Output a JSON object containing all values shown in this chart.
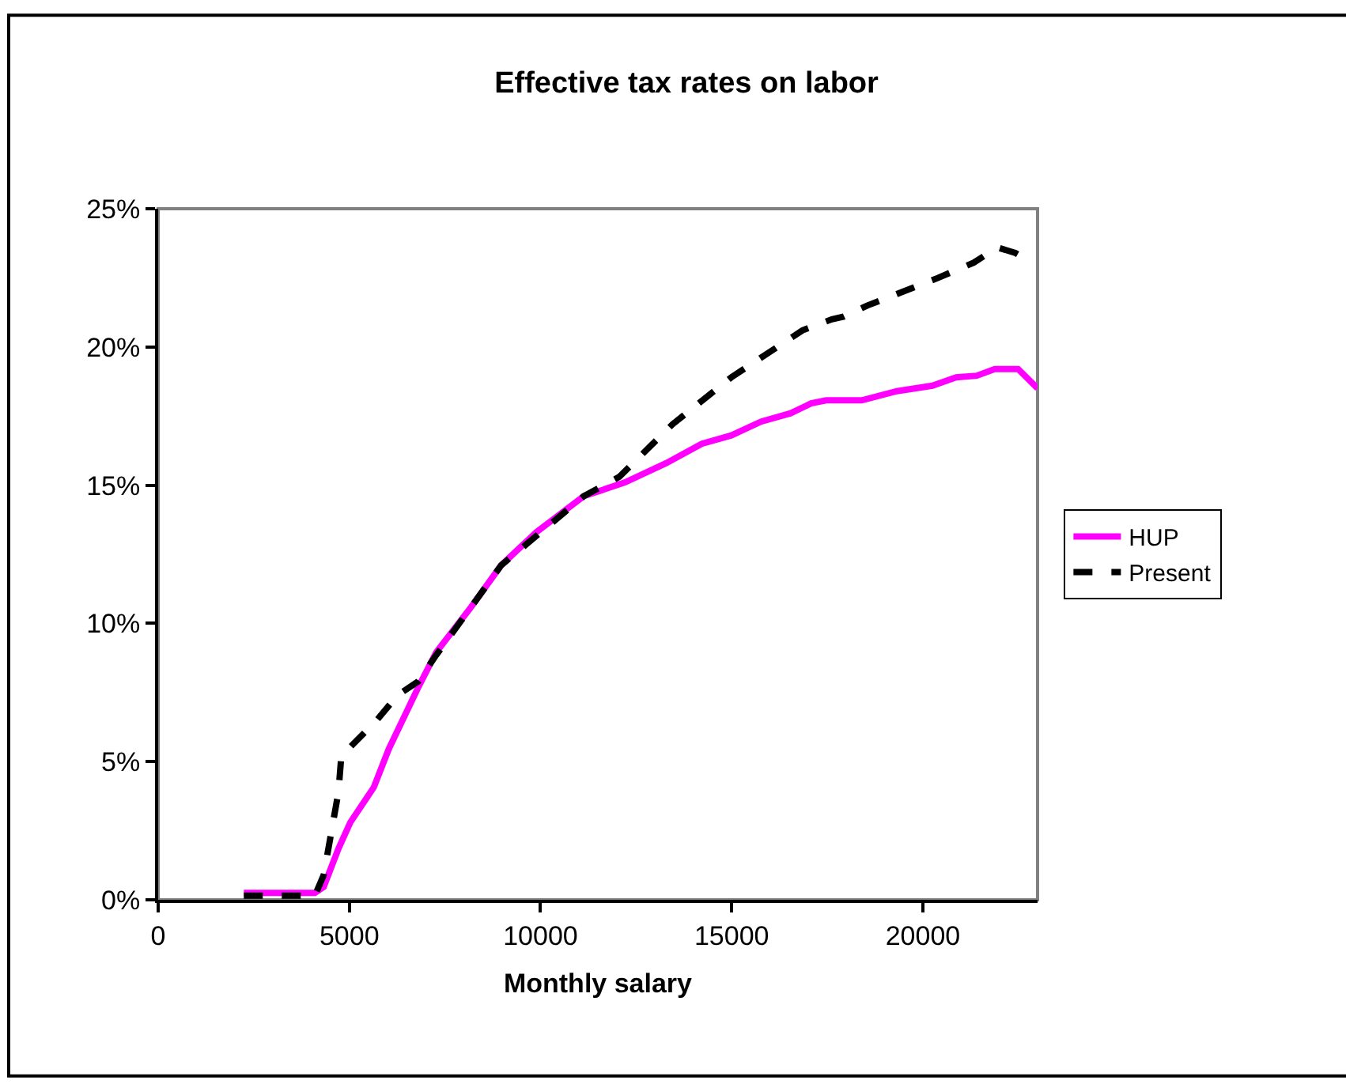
{
  "chart_data": {
    "type": "line",
    "title": "Effective tax rates on labor",
    "xlabel": "Monthly salary",
    "x": [
      2240,
      4100,
      4330,
      4715,
      5025,
      5640,
      6030,
      6800,
      7270,
      8190,
      8970,
      9890,
      11130,
      12210,
      13290,
      14220,
      14990,
      15770,
      16540,
      17080,
      17470,
      18400,
      19320,
      20250,
      20870,
      21410,
      21880,
      22490,
      23000
    ],
    "series": [
      {
        "name": "HUP",
        "color": "#ff00ff",
        "line_style": "solid",
        "values": [
          0.25,
          0.25,
          0.47,
          1.85,
          2.8,
          4.07,
          5.45,
          7.68,
          8.95,
          10.6,
          12.1,
          13.3,
          14.6,
          15.1,
          15.8,
          16.5,
          16.8,
          17.3,
          17.6,
          17.96,
          18.07,
          18.07,
          18.4,
          18.6,
          18.9,
          18.96,
          19.2,
          19.2,
          18.5
        ]
      },
      {
        "name": "Present",
        "color": "#000000",
        "line_style": "dashed",
        "x": [
          2240,
          4100,
          4330,
          4715,
          4790,
          5720,
          6260,
          6800,
          7270,
          8190,
          8970,
          11130,
          12060,
          13450,
          14990,
          16850,
          17620,
          17930,
          18550,
          20400,
          21330,
          21950,
          22420,
          22880
        ],
        "values": [
          0.15,
          0.15,
          0.9,
          3.9,
          5.2,
          6.5,
          7.4,
          7.9,
          8.85,
          10.6,
          12.1,
          14.6,
          15.3,
          17.2,
          18.9,
          20.6,
          21.0,
          21.1,
          21.5,
          22.5,
          23.05,
          23.6,
          23.4,
          23.05
        ]
      }
    ],
    "xlim": [
      0,
      23000
    ],
    "xticks": [
      0,
      5000,
      10000,
      15000,
      20000
    ],
    "ylim": [
      0,
      25
    ],
    "yticks": [
      {
        "value": 0,
        "label": "0%"
      },
      {
        "value": 5,
        "label": "5%"
      },
      {
        "value": 10,
        "label": "10%"
      },
      {
        "value": 15,
        "label": "15%"
      },
      {
        "value": 20,
        "label": "20%"
      },
      {
        "value": 25,
        "label": "25%"
      }
    ],
    "grid": false,
    "legend": "right",
    "marker": "none"
  }
}
